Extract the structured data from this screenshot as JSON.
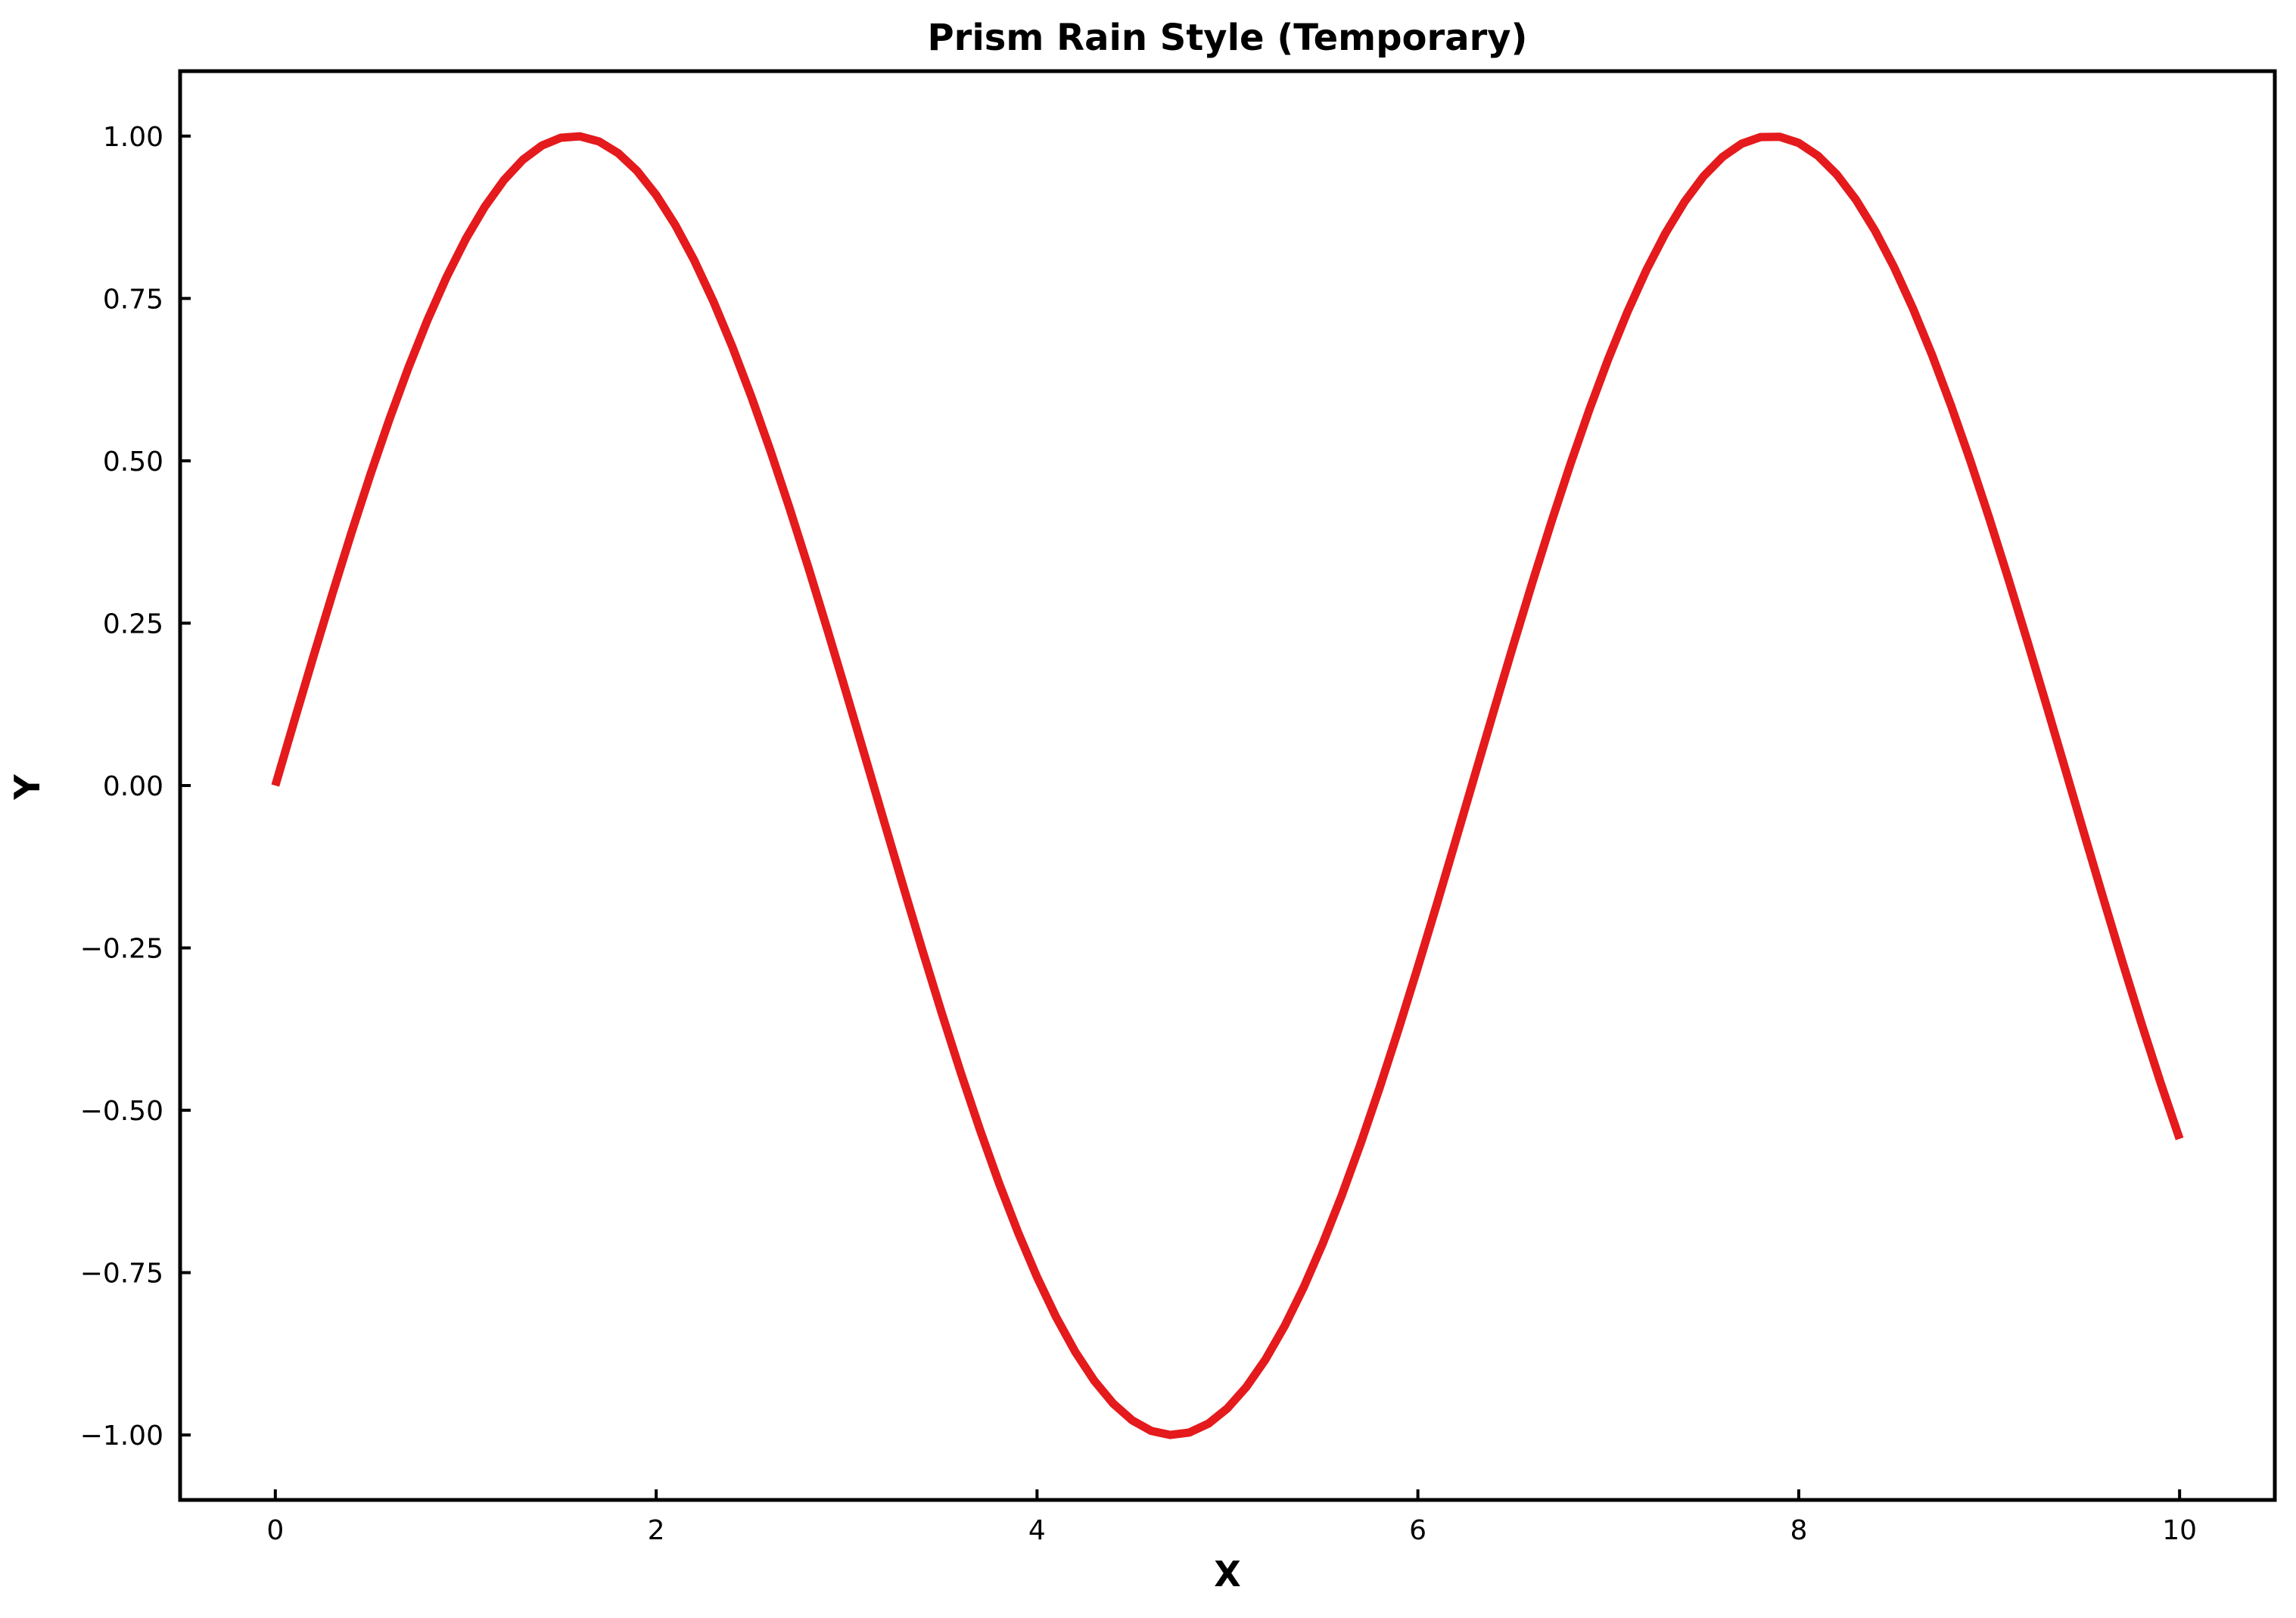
{
  "chart_data": {
    "type": "line",
    "title": "Prism Rain Style (Temporary)",
    "xlabel": "X",
    "ylabel": "Y",
    "xlim": [
      -0.5,
      10.5
    ],
    "ylim": [
      -1.1,
      1.1
    ],
    "xticks": [
      0,
      2,
      4,
      6,
      8,
      10
    ],
    "xtick_labels": [
      "0",
      "2",
      "4",
      "6",
      "8",
      "10"
    ],
    "yticks": [
      1.0,
      0.75,
      0.5,
      0.25,
      0.0,
      -0.25,
      -0.5,
      -0.75,
      -1.0
    ],
    "ytick_labels": [
      "1.00",
      "0.75",
      "0.50",
      "0.25",
      "0.00",
      "−0.25",
      "−0.50",
      "−0.75",
      "−1.00"
    ],
    "grid": false,
    "series": [
      {
        "color": "#e41a1c",
        "x": [
          0.0,
          0.1,
          0.2,
          0.3,
          0.4,
          0.5,
          0.6,
          0.7,
          0.8,
          0.9,
          1.0,
          1.1,
          1.2,
          1.3,
          1.4,
          1.5,
          1.6,
          1.7,
          1.8,
          1.9,
          2.0,
          2.1,
          2.2,
          2.3,
          2.4,
          2.5,
          2.6,
          2.7,
          2.8,
          2.9,
          3.0,
          3.1,
          3.2,
          3.3,
          3.4,
          3.5,
          3.6,
          3.7,
          3.8,
          3.9,
          4.0,
          4.1,
          4.2,
          4.3,
          4.4,
          4.5,
          4.6,
          4.7,
          4.8,
          4.9,
          5.0,
          5.1,
          5.2,
          5.3,
          5.4,
          5.5,
          5.6,
          5.7,
          5.8,
          5.9,
          6.0,
          6.1,
          6.2,
          6.3,
          6.4,
          6.5,
          6.6,
          6.7,
          6.8,
          6.9,
          7.0,
          7.1,
          7.2,
          7.3,
          7.4,
          7.5,
          7.6,
          7.7,
          7.8,
          7.9,
          8.0,
          8.1,
          8.2,
          8.3,
          8.4,
          8.5,
          8.6,
          8.7,
          8.8,
          8.9,
          9.0,
          9.1,
          9.2,
          9.3,
          9.4,
          9.5,
          9.6,
          9.7,
          9.8,
          9.9,
          10.0
        ],
        "y": [
          0.0,
          0.0998,
          0.1987,
          0.2955,
          0.3894,
          0.4794,
          0.5646,
          0.6442,
          0.7174,
          0.7833,
          0.8415,
          0.8912,
          0.932,
          0.9636,
          0.9854,
          0.9975,
          0.9996,
          0.9917,
          0.9738,
          0.9463,
          0.9093,
          0.8632,
          0.8085,
          0.7457,
          0.6755,
          0.5985,
          0.5155,
          0.4274,
          0.335,
          0.2392,
          0.1411,
          0.0416,
          -0.0584,
          -0.1577,
          -0.2555,
          -0.3508,
          -0.4425,
          -0.5298,
          -0.6119,
          -0.6878,
          -0.7568,
          -0.8183,
          -0.8716,
          -0.9162,
          -0.9516,
          -0.9775,
          -0.9937,
          -0.9999,
          -0.9962,
          -0.9825,
          -0.9589,
          -0.9258,
          -0.8835,
          -0.8323,
          -0.7728,
          -0.7055,
          -0.6313,
          -0.5507,
          -0.4646,
          -0.3739,
          -0.2794,
          -0.1822,
          -0.0831,
          0.0168,
          0.1165,
          0.2151,
          0.3115,
          0.4048,
          0.4941,
          0.5784,
          0.657,
          0.729,
          0.7937,
          0.8504,
          0.8987,
          0.938,
          0.9679,
          0.9882,
          0.9985,
          0.9989,
          0.9894,
          0.9699,
          0.9407,
          0.9022,
          0.8546,
          0.7985,
          0.7344,
          0.663,
          0.5849,
          0.501,
          0.4121,
          0.319,
          0.2229,
          0.1245,
          0.0248,
          -0.0752,
          -0.1743,
          -0.2718,
          -0.3665,
          -0.4575,
          -0.544
        ]
      }
    ]
  }
}
